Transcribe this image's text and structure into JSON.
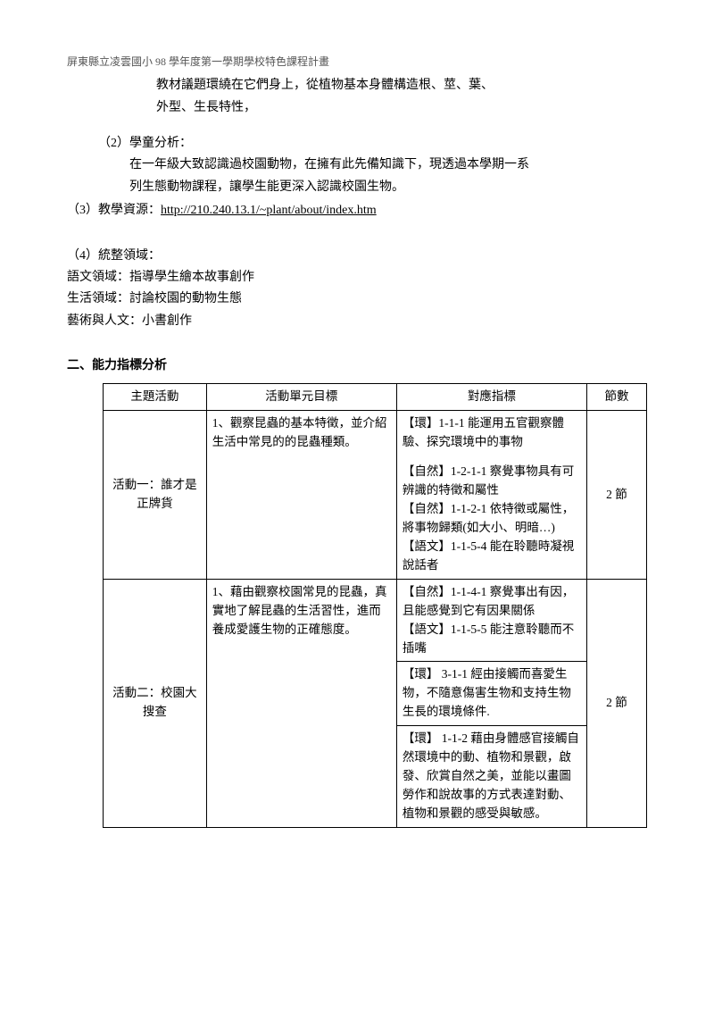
{
  "header_note": "屏東縣立凌雲國小 98 學年度第一學期學校特色課程計畫",
  "intro_lines": {
    "line1": "教材議題環繞在它們身上，從植物基本身體構造根、莖、葉、",
    "line2": "外型、生長特性，"
  },
  "item2": {
    "label": "（2）學童分析：",
    "line1": "在一年級大致認識過校園動物，在擁有此先備知識下，現透過本學期一系",
    "line2": "列生態動物課程，讓學生能更深入認識校園生物。"
  },
  "item3": {
    "label": "（3）教學資源：",
    "url": "http://210.240.13.1/~plant/about/index.htm"
  },
  "item4": {
    "label": "（4）統整領域：",
    "lines": [
      "語文領域：指導學生繪本故事創作",
      "生活領域：討論校園的動物生態",
      "藝術與人文：小書創作"
    ]
  },
  "section2_title": "二、能力指標分析",
  "table": {
    "headers": [
      "主題活動",
      "活動單元目標",
      "對應指標",
      "節數"
    ],
    "rows": [
      {
        "topic": "活動一：誰才是正牌貨",
        "goal": "1、觀察昆蟲的基本特徵，並介紹生活中常見的的昆蟲種類。",
        "indicators_a": "【環】1-1-1 能運用五官觀察體驗、探究環境中的事物",
        "indicators_b": "【自然】1-2-1-1 察覺事物具有可辨識的特徵和屬性\n【自然】1-1-2-1 依特徵或屬性，將事物歸類(如大小、明暗…)\n【語文】1-1-5-4 能在聆聽時凝視說話者",
        "count": "2 節"
      },
      {
        "topic": "活動二：校園大搜查",
        "goal": "1、藉由觀察校園常見的昆蟲，真實地了解昆蟲的生活習性，進而養成愛護生物的正確態度。",
        "indicators_a": "【自然】1-1-4-1 察覺事出有因，且能感覺到它有因果關係\n【語文】1-1-5-5 能注意聆聽而不插嘴",
        "indicators_b": "【環】 3-1-1 經由接觸而喜愛生物，不隨意傷害生物和支持生物生長的環境條件.",
        "indicators_c": "【環】 1-1-2 藉由身體感官接觸自然環境中的動、植物和景觀，啟發、欣賞自然之美，並能以畫圖勞作和說故事的方式表達對動、植物和景觀的感受與敏感。",
        "count": "2 節"
      }
    ]
  }
}
